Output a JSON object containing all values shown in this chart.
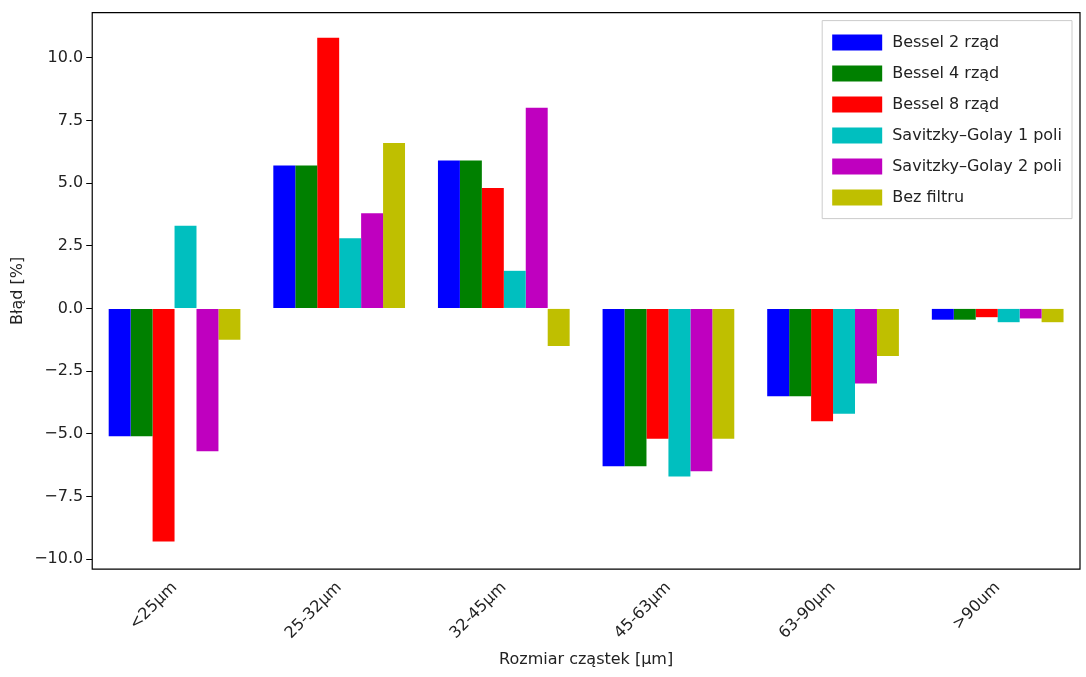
{
  "chart_data": {
    "type": "bar",
    "xlabel": "Rozmiar cząstek [µm]",
    "ylabel": "Błąd [%]",
    "categories": [
      "<25µm",
      "25-32µm",
      "32-45µm",
      "45-63µm",
      "63-90µm",
      ">90um"
    ],
    "series": [
      {
        "name": "Bessel 2 rząd",
        "color": "#0000ff",
        "values": [
          -5.1,
          5.7,
          5.9,
          -6.3,
          -3.5,
          -0.45
        ]
      },
      {
        "name": "Bessel 4 rząd",
        "color": "#008000",
        "values": [
          -5.1,
          5.7,
          5.9,
          -6.3,
          -3.5,
          -0.45
        ]
      },
      {
        "name": "Bessel 8 rząd",
        "color": "#ff0000",
        "values": [
          -9.3,
          10.8,
          4.8,
          -5.2,
          -4.5,
          -0.35
        ]
      },
      {
        "name": "Savitzky–Golay 1 poli",
        "color": "#00bfbf",
        "values": [
          3.3,
          2.8,
          1.5,
          -6.7,
          -4.2,
          -0.55
        ]
      },
      {
        "name": "Savitzky–Golay 2 poli",
        "color": "#bf00bf",
        "values": [
          -5.7,
          3.8,
          8.0,
          -6.5,
          -3.0,
          -0.4
        ]
      },
      {
        "name": "Bez filtru",
        "color": "#bfbf00",
        "values": [
          -1.25,
          6.6,
          -1.5,
          -5.2,
          -1.9,
          -0.55
        ]
      }
    ],
    "ylim": [
      -10.4,
      11.8
    ],
    "yticks": [
      {
        "value": -10,
        "label": "−10.0"
      },
      {
        "value": -7.5,
        "label": "−7.5"
      },
      {
        "value": -5,
        "label": "−5.0"
      },
      {
        "value": -2.5,
        "label": "−2.5"
      },
      {
        "value": 0,
        "label": "0.0"
      },
      {
        "value": 2.5,
        "label": "2.5"
      },
      {
        "value": 5,
        "label": "5.0"
      },
      {
        "value": 7.5,
        "label": "7.5"
      },
      {
        "value": 10,
        "label": "10.0"
      }
    ],
    "grid": false,
    "legend": "top right"
  }
}
